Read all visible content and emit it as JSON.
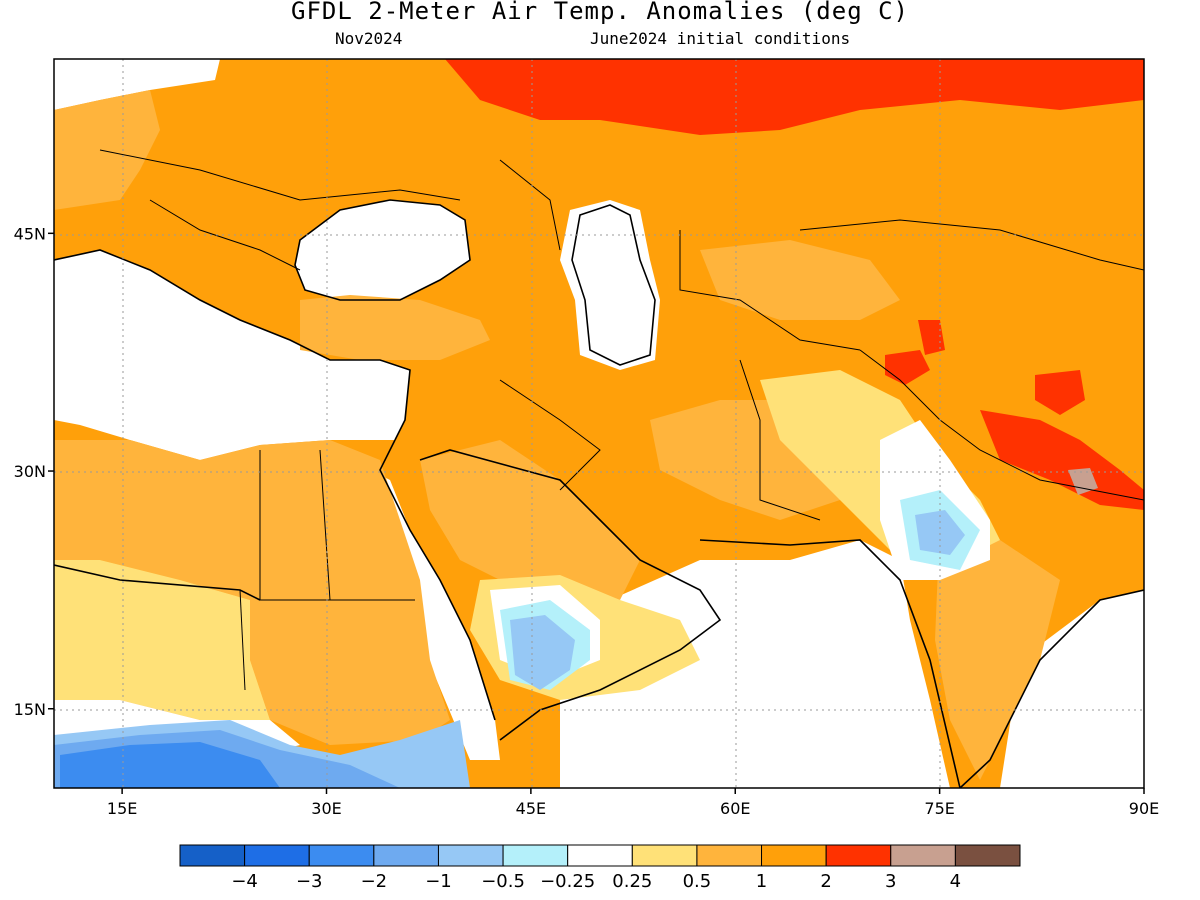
{
  "header": {
    "title": "GFDL 2-Meter Air Temp. Anomalies (deg C)",
    "month": "Nov2024",
    "init": "June2024 initial conditions"
  },
  "axes": {
    "lon_ticks": [
      {
        "value": 15,
        "label": "15E"
      },
      {
        "value": 30,
        "label": "30E"
      },
      {
        "value": 45,
        "label": "45E"
      },
      {
        "value": 60,
        "label": "60E"
      },
      {
        "value": 75,
        "label": "75E"
      },
      {
        "value": 90,
        "label": "90E"
      }
    ],
    "lat_ticks": [
      {
        "value": 45,
        "label": "45N"
      },
      {
        "value": 30,
        "label": "30N"
      },
      {
        "value": 15,
        "label": "15N"
      }
    ],
    "lon_range": [
      10,
      90
    ],
    "lat_range": [
      10,
      56
    ]
  },
  "colorbar": {
    "colors": [
      "#1560c8",
      "#1e6ee6",
      "#3c8cf0",
      "#6eaaf0",
      "#96c8f5",
      "#b4f0fa",
      "#ffffff",
      "#ffe178",
      "#ffb43c",
      "#ffa00a",
      "#ff3200",
      "#c8a090",
      "#7a5040"
    ],
    "labels": [
      "−4",
      "−3",
      "−2",
      "−1",
      "−0.5",
      "−0.25",
      "0.25",
      "0.5",
      "1",
      "2",
      "3",
      "4"
    ]
  }
}
